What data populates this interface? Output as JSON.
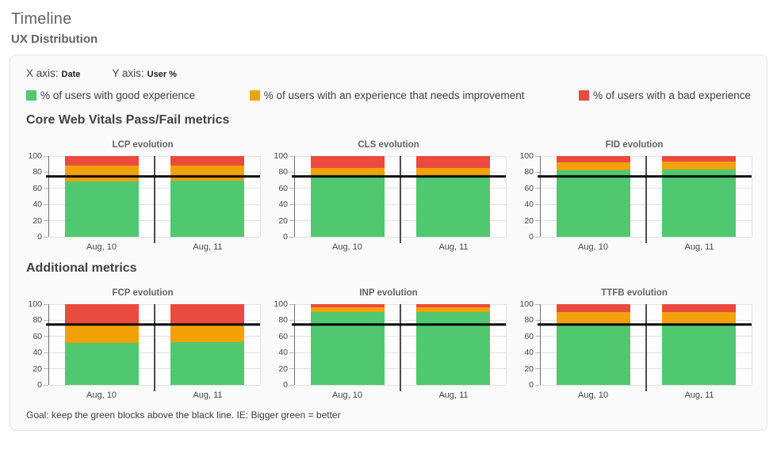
{
  "page": {
    "title": "Timeline",
    "subtitle": "UX Distribution"
  },
  "panel": {
    "x_axis_label": "X axis:",
    "x_axis_value": "Date",
    "y_axis_label": "Y axis:",
    "y_axis_value": "User %"
  },
  "colors": {
    "good": "#50C870",
    "needs_improvement": "#F2A208",
    "bad": "#EA4B3E",
    "threshold_line": "#000000"
  },
  "legend": {
    "items": [
      {
        "key": "good",
        "label": "% of users with good experience",
        "color": "#50C870"
      },
      {
        "key": "needs_improvement",
        "label": "% of users with an experience that needs improvement",
        "color": "#F2A208"
      },
      {
        "key": "bad",
        "label": "% of users with a bad experience",
        "color": "#EA4B3E"
      }
    ]
  },
  "sections": [
    {
      "title": "Core Web Vitals Pass/Fail metrics"
    },
    {
      "title": "Additional metrics"
    }
  ],
  "footer": {
    "goal": "Goal: keep the green blocks above the black line. IE: Bigger green = better"
  },
  "chart_data": [
    {
      "type": "bar",
      "stacked": true,
      "section": 0,
      "title": "LCP evolution",
      "categories": [
        "Aug, 10",
        "Aug, 11"
      ],
      "series": [
        {
          "key": "good",
          "name": "% of users with good experience",
          "color": "#50C870",
          "values": [
            69,
            70
          ]
        },
        {
          "key": "needs_improvement",
          "name": "% of users with an experience that needs improvement",
          "color": "#F2A208",
          "values": [
            19,
            18
          ]
        },
        {
          "key": "bad",
          "name": "% of users with a bad experience",
          "color": "#EA4B3E",
          "values": [
            12,
            12
          ]
        }
      ],
      "xlabel": "Date",
      "ylabel": "User %",
      "ylim": [
        0,
        100
      ],
      "yticks": [
        0,
        20,
        40,
        60,
        80,
        100
      ],
      "grid": true,
      "threshold": 75
    },
    {
      "type": "bar",
      "stacked": true,
      "section": 0,
      "title": "CLS evolution",
      "categories": [
        "Aug, 10",
        "Aug, 11"
      ],
      "series": [
        {
          "key": "good",
          "name": "% of users with good experience",
          "color": "#50C870",
          "values": [
            76,
            75
          ]
        },
        {
          "key": "needs_improvement",
          "name": "% of users with an experience that needs improvement",
          "color": "#F2A208",
          "values": [
            9,
            10
          ]
        },
        {
          "key": "bad",
          "name": "% of users with a bad experience",
          "color": "#EA4B3E",
          "values": [
            15,
            15
          ]
        }
      ],
      "xlabel": "Date",
      "ylabel": "User %",
      "ylim": [
        0,
        100
      ],
      "yticks": [
        0,
        20,
        40,
        60,
        80,
        100
      ],
      "grid": true,
      "threshold": 75
    },
    {
      "type": "bar",
      "stacked": true,
      "section": 0,
      "title": "FID evolution",
      "categories": [
        "Aug, 10",
        "Aug, 11"
      ],
      "series": [
        {
          "key": "good",
          "name": "% of users with good experience",
          "color": "#50C870",
          "values": [
            82,
            83
          ]
        },
        {
          "key": "needs_improvement",
          "name": "% of users with an experience that needs improvement",
          "color": "#F2A208",
          "values": [
            10,
            10
          ]
        },
        {
          "key": "bad",
          "name": "% of users with a bad experience",
          "color": "#EA4B3E",
          "values": [
            8,
            7
          ]
        }
      ],
      "xlabel": "Date",
      "ylabel": "User %",
      "ylim": [
        0,
        100
      ],
      "yticks": [
        0,
        20,
        40,
        60,
        80,
        100
      ],
      "grid": true,
      "threshold": 75
    },
    {
      "type": "bar",
      "stacked": true,
      "section": 1,
      "title": "FCP evolution",
      "categories": [
        "Aug, 10",
        "Aug, 11"
      ],
      "series": [
        {
          "key": "good",
          "name": "% of users with good experience",
          "color": "#50C870",
          "values": [
            52,
            53
          ]
        },
        {
          "key": "needs_improvement",
          "name": "% of users with an experience that needs improvement",
          "color": "#F2A208",
          "values": [
            23,
            22
          ]
        },
        {
          "key": "bad",
          "name": "% of users with a bad experience",
          "color": "#EA4B3E",
          "values": [
            25,
            25
          ]
        }
      ],
      "xlabel": "Date",
      "ylabel": "User %",
      "ylim": [
        0,
        100
      ],
      "yticks": [
        0,
        20,
        40,
        60,
        80,
        100
      ],
      "grid": true,
      "threshold": 75
    },
    {
      "type": "bar",
      "stacked": true,
      "section": 1,
      "title": "INP evolution",
      "categories": [
        "Aug, 10",
        "Aug, 11"
      ],
      "series": [
        {
          "key": "good",
          "name": "% of users with good experience",
          "color": "#50C870",
          "values": [
            90,
            90
          ]
        },
        {
          "key": "needs_improvement",
          "name": "% of users with an experience that needs improvement",
          "color": "#F2A208",
          "values": [
            6,
            6
          ]
        },
        {
          "key": "bad",
          "name": "% of users with a bad experience",
          "color": "#EA4B3E",
          "values": [
            4,
            4
          ]
        }
      ],
      "xlabel": "Date",
      "ylabel": "User %",
      "ylim": [
        0,
        100
      ],
      "yticks": [
        0,
        20,
        40,
        60,
        80,
        100
      ],
      "grid": true,
      "threshold": 75
    },
    {
      "type": "bar",
      "stacked": true,
      "section": 1,
      "title": "TTFB evolution",
      "categories": [
        "Aug, 10",
        "Aug, 11"
      ],
      "series": [
        {
          "key": "good",
          "name": "% of users with good experience",
          "color": "#50C870",
          "values": [
            75,
            75
          ]
        },
        {
          "key": "needs_improvement",
          "name": "% of users with an experience that needs improvement",
          "color": "#F2A208",
          "values": [
            15,
            15
          ]
        },
        {
          "key": "bad",
          "name": "% of users with a bad experience",
          "color": "#EA4B3E",
          "values": [
            10,
            10
          ]
        }
      ],
      "xlabel": "Date",
      "ylabel": "User %",
      "ylim": [
        0,
        100
      ],
      "yticks": [
        0,
        20,
        40,
        60,
        80,
        100
      ],
      "grid": true,
      "threshold": 75
    }
  ]
}
